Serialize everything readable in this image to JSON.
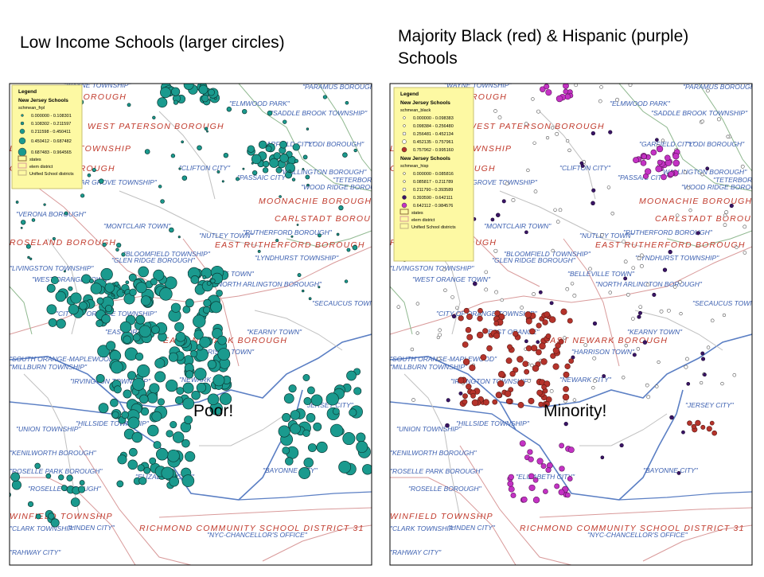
{
  "left": {
    "title": "Low Income Schools (larger circles)",
    "annotation": "Poor!",
    "legend": {
      "heading": "Legend",
      "layer": "New Jersey Schools",
      "field": "schmean_frpl",
      "classes": [
        "0.000000 - 0.108301",
        "0.108302 - 0.211597",
        "0.211598 - 0.450411",
        "0.450412 - 0.687482",
        "0.687483 - 0.964565"
      ],
      "others": [
        "states",
        "elem district",
        "Unified School districts"
      ]
    }
  },
  "right": {
    "title": [
      "Majority Black (red) & Hispanic (purple)",
      "Schools"
    ],
    "annotation": "Minority!",
    "legend": {
      "heading": "Legend",
      "layer": "New Jersey Schools",
      "field": "schmean_black",
      "classes": [
        "0.000000 - 0.098383",
        "0.098384 - 0.256480",
        "0.256481 - 0.452134",
        "0.452135 - 0.757961",
        "0.757962 - 0.995160"
      ],
      "layer2": "New Jersey Schools",
      "field2": "schmean_hisp",
      "classes2": [
        "0.000000 - 0.085816",
        "0.085817 - 0.211789",
        "0.211790 - 0.393589",
        "0.393590 - 0.642111",
        "0.642112 - 0.984576"
      ],
      "others": [
        "states",
        "elem district",
        "Unified School districts"
      ]
    }
  },
  "map_labels": [
    "\"WAYNE TOWNSHIP\"",
    "\"PARAMUS BOROUGH\"",
    "TOTOWA BOROUGH",
    "\"ELMWOOD PARK\"",
    "\"SADDLE BROOK TOWNSHIP\"",
    "WEST PATERSON BOROUGH",
    "LITTLE FALLS TOWNSHIP",
    "\"GARFIELD CITY\"",
    "\"LODI BOROUGH\"",
    "\"CLIFTON CITY\"",
    "CALDWELL BOROUGH",
    "\"WALLINGTON BOROUGH\"",
    "\"PASSAIC CITY\"",
    "\"TETERBORO\"",
    "\"CEDAR GROVE TOWNSHIP\"",
    "\"WOOD RIDGE BOROUGH\"",
    "MOONACHIE BOROUGH",
    "\"VERONA BOROUGH\"",
    "CARLSTADT BOROUGH",
    "\"MONTCLAIR TOWN\"",
    "\"NUTLEY TOWN\"",
    "\"RUTHERFORD BOROUGH\"",
    "ROSELAND BOROUGH",
    "EAST RUTHERFORD BOROUGH",
    "\"BLOOMFIELD TOWNSHIP\"",
    "\"GLEN RIDGE BOROUGH\"",
    "\"LYNDHURST TOWNSHIP\"",
    "\"LIVINGSTON TOWNSHIP\"",
    "\"BELLEVILLE TOWN\"",
    "\"WEST ORANGE TOWN\"",
    "\"NORTH ARLINGTON BOROUGH\"",
    "\"SECAUCUS TOWN\"",
    "\"CITY OF ORANGE TOWNSHIP\"",
    "\"EAST ORANGE\"",
    "\"KEARNY TOWN\"",
    "EAST NEWARK BOROUGH",
    "\"HARRISON TOWN\"",
    "\"SOUTH ORANGE-MAPLEWOOD\"",
    "\"MILLBURN TOWNSHIP\"",
    "\"NEWARK CITY\"",
    "\"IRVINGTON TOWNSHIP\"",
    "\"JERSEY CITY\"",
    "\"HILLSIDE TOWNSHIP\"",
    "\"UNION TOWNSHIP\"",
    "\"KENILWORTH BOROUGH\"",
    "\"ROSELLE PARK BOROUGH\"",
    "\"BAYONNE CITY\"",
    "\"ELIZABETH CITY\"",
    "\"ROSELLE BOROUGH\"",
    "WINFIELD TOWNSHIP",
    "\"CLARK TOWNSHIP\"",
    "\"LINDEN CITY\"",
    "RICHMOND COMMUNITY SCHOOL DISTRICT 31",
    "\"NYC-CHANCELLOR'S OFFICE\"",
    "\"RAHWAY CITY\""
  ]
}
